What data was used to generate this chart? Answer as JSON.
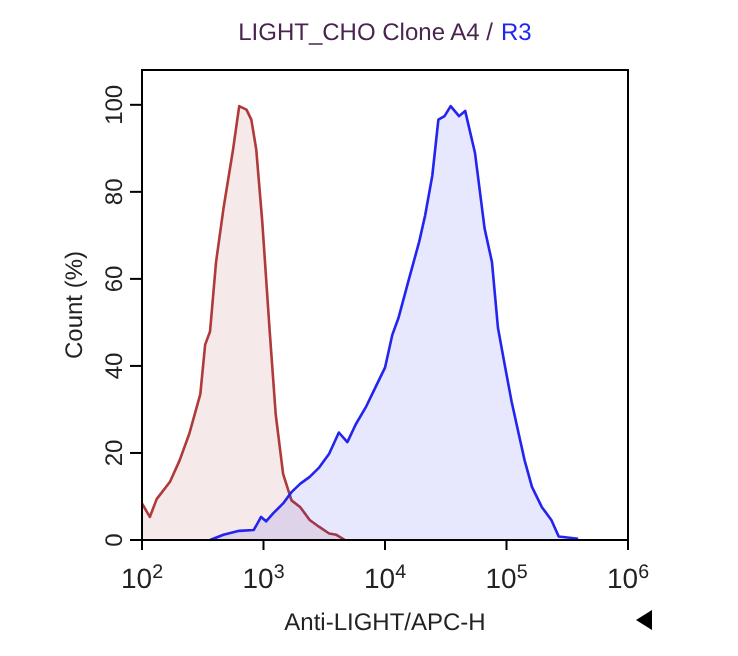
{
  "chart_data": {
    "type": "area",
    "title": "LIGHT_CHO Clone A4 /",
    "subtitle": "R3",
    "xlabel": "Anti-LIGHT/APC-H",
    "ylabel": "Count (%)",
    "log": "x",
    "grid": false,
    "xlim": [
      100,
      1000000
    ],
    "xticks": [
      {
        "value": 100,
        "label": "10$^{2}$"
      },
      {
        "value": 1000,
        "label": "10$^{3}$"
      },
      {
        "value": 10000,
        "label": "10$^{4}$"
      },
      {
        "value": 100000,
        "label": "10$^{5}$"
      },
      {
        "value": 1000000,
        "label": "10$^{6}$"
      }
    ],
    "ylim": [
      0,
      108
    ],
    "yticks": [
      0,
      20,
      40,
      60,
      80,
      100
    ],
    "series": [
      {
        "color": "#b03a3a",
        "x": [
          100,
          116,
          132,
          170,
          204,
          245,
          302,
          331,
          363,
          407,
          468,
          562,
          631,
          724,
          794,
          871,
          977,
          1120,
          1260,
          1450,
          1700,
          2000,
          2400,
          2880,
          3470,
          3980,
          4680
        ],
        "values": [
          8.4,
          5.3,
          9.4,
          13.4,
          18.3,
          24.4,
          33.5,
          44.9,
          47.9,
          63.9,
          76.1,
          89.8,
          99.7,
          98.9,
          96.6,
          89.8,
          73.1,
          48.7,
          28.9,
          15.2,
          9.1,
          7.6,
          4.6,
          3.0,
          1.5,
          1.2,
          0
        ]
      },
      {
        "color": "#2424f0",
        "x": [
          363,
          468,
          631,
          832,
          955,
          1050,
          1200,
          1450,
          1700,
          2000,
          2400,
          2880,
          3470,
          4170,
          4900,
          5750,
          6920,
          8320,
          10000,
          11500,
          12900,
          15800,
          19100,
          21400,
          24500,
          27500,
          30900,
          34700,
          40700,
          45700,
          55000,
          66100,
          75900,
          85100,
          97700,
          110000,
          126000,
          141000,
          162000,
          195000,
          234000,
          269000,
          389000
        ],
        "values": [
          0,
          1.2,
          2.1,
          2.3,
          5.3,
          4.3,
          6.1,
          8.4,
          11.0,
          12.9,
          14.5,
          16.7,
          19.8,
          24.7,
          22.5,
          26.6,
          30.4,
          35.0,
          39.6,
          47.2,
          51.0,
          60.1,
          68.5,
          74.6,
          83.7,
          96.6,
          97.4,
          99.7,
          97.4,
          98.6,
          89.0,
          71.5,
          63.9,
          48.7,
          39.6,
          31.9,
          24.4,
          18.3,
          12.2,
          7.6,
          4.6,
          0.8,
          0.3
        ]
      }
    ]
  }
}
